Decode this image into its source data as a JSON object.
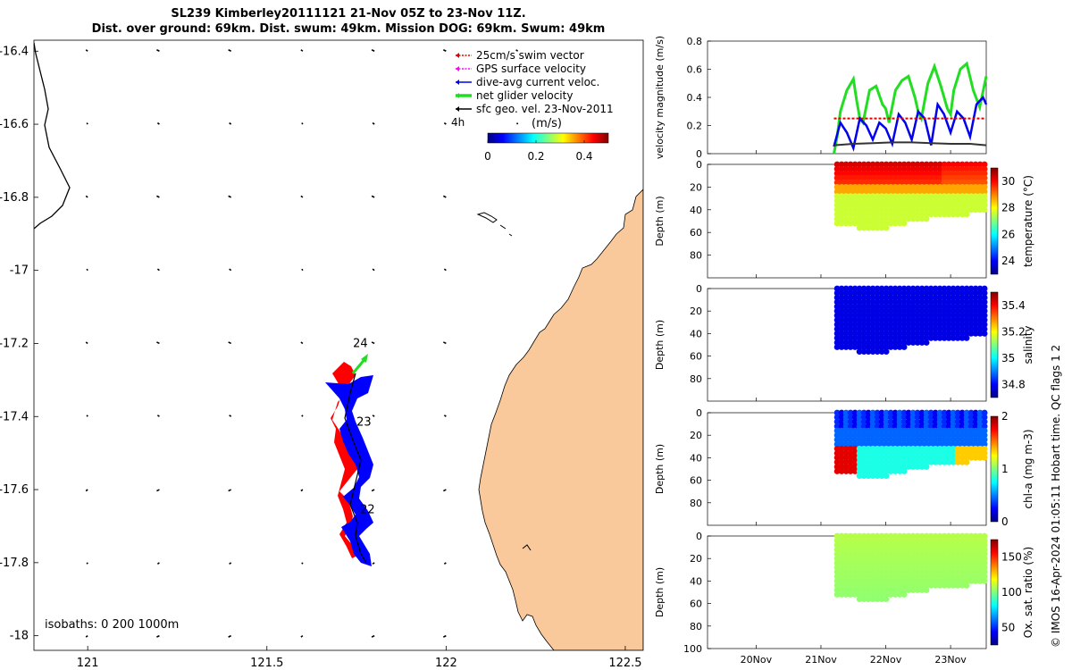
{
  "title_line1": "SL239 Kimberley20111121 21-Nov 05Z to 23-Nov 11Z.",
  "title_line2": "Dist. over ground: 69km. Dist. swum: 49km. Mission DOG: 69km. Swum: 49km",
  "credit": "© IMOS 16-Apr-2024 01:05:11 Hobart time. QC flags 1  2",
  "colors": {
    "land": "#f9c99c",
    "track_red": "#ff0000",
    "track_blue": "#0000ff",
    "net_green": "#22dd22",
    "swim_red": "#dd0000",
    "gps_magenta": "#ff00ff",
    "current_blue": "#0000ee",
    "sfc_black": "#000000"
  },
  "map": {
    "x_ticks": [
      "121",
      "121.5",
      "122",
      "122.5"
    ],
    "y_ticks": [
      "-16.4",
      "-16.6",
      "-16.8",
      "-17",
      "-17.2",
      "-17.4",
      "-17.6",
      "-17.8",
      "-18"
    ],
    "legend": [
      {
        "label": "25cm/s swim vector",
        "color": "#dd0000",
        "style": "dotted"
      },
      {
        "label": "GPS surface velocity",
        "color": "#ff00ff",
        "style": "dotted"
      },
      {
        "label": "dive-avg current veloc.",
        "color": "#0000ee",
        "style": "solid"
      },
      {
        "label": "net glider velocity",
        "color": "#22dd22",
        "style": "thick"
      },
      {
        "label": "sfc geo. vel. 23-Nov-2011",
        "color": "#000000",
        "style": "solid"
      }
    ],
    "time_label": "4h",
    "colorbar": {
      "title": "(m/s)",
      "ticks": [
        "0",
        "0.2",
        "0.4"
      ],
      "range": [
        0,
        0.5
      ]
    },
    "isobaths_label": "isobaths: 0   200  1000m",
    "day_labels": [
      {
        "text": "24",
        "lon": 121.76,
        "lat": -17.2
      },
      {
        "text": "23",
        "lon": 121.77,
        "lat": -17.415
      },
      {
        "text": "22",
        "lon": 121.78,
        "lat": -17.655
      }
    ]
  },
  "chart_data": [
    {
      "type": "line",
      "title": "",
      "xlabel": "",
      "ylabel": "velocity magnitude (m/s)",
      "x_range_days_nov": [
        19.25,
        23.55
      ],
      "ylim": [
        0,
        0.8
      ],
      "y_ticks": [
        "0",
        "0.2",
        "0.4",
        "0.6",
        "0.8"
      ],
      "series": [
        {
          "name": "net glider velocity",
          "color": "#22dd22",
          "x": [
            21.2,
            21.25,
            21.3,
            21.4,
            21.5,
            21.55,
            21.6,
            21.65,
            21.75,
            21.85,
            21.95,
            22.0,
            22.05,
            22.15,
            22.25,
            22.35,
            22.45,
            22.5,
            22.55,
            22.65,
            22.75,
            22.85,
            22.95,
            23.0,
            23.05,
            23.15,
            23.25,
            23.35,
            23.45,
            23.55
          ],
          "values": [
            0.0,
            0.12,
            0.3,
            0.45,
            0.53,
            0.38,
            0.25,
            0.22,
            0.45,
            0.48,
            0.35,
            0.32,
            0.22,
            0.45,
            0.52,
            0.55,
            0.4,
            0.3,
            0.25,
            0.5,
            0.62,
            0.48,
            0.32,
            0.28,
            0.45,
            0.6,
            0.64,
            0.45,
            0.33,
            0.55
          ]
        },
        {
          "name": "dive-avg current veloc.",
          "color": "#0000ee",
          "x": [
            21.2,
            21.3,
            21.4,
            21.5,
            21.6,
            21.7,
            21.8,
            21.9,
            22.0,
            22.1,
            22.2,
            22.3,
            22.4,
            22.5,
            22.6,
            22.7,
            22.8,
            22.9,
            23.0,
            23.1,
            23.2,
            23.3,
            23.4,
            23.5,
            23.55
          ],
          "values": [
            0.05,
            0.22,
            0.15,
            0.04,
            0.25,
            0.2,
            0.1,
            0.22,
            0.18,
            0.07,
            0.28,
            0.22,
            0.1,
            0.3,
            0.25,
            0.06,
            0.35,
            0.28,
            0.15,
            0.3,
            0.25,
            0.12,
            0.35,
            0.4,
            0.35
          ]
        },
        {
          "name": "25cm/s swim vector",
          "color": "#dd0000",
          "x": [
            21.2,
            23.55
          ],
          "values": [
            0.25,
            0.25
          ]
        },
        {
          "name": "sfc geo. vel.",
          "color": "#333333",
          "x": [
            21.2,
            21.5,
            21.8,
            22.1,
            22.4,
            22.7,
            23.0,
            23.3,
            23.55
          ],
          "values": [
            0.06,
            0.07,
            0.075,
            0.08,
            0.08,
            0.075,
            0.07,
            0.07,
            0.06
          ]
        }
      ]
    },
    {
      "type": "scatter",
      "ylabel": "Depth (m)",
      "colorbar_label": "temperature (°C)",
      "y_ticks": [
        "0",
        "20",
        "40",
        "60",
        "80"
      ],
      "c_ticks": [
        "24",
        "26",
        "28",
        "30"
      ],
      "c_range": [
        23,
        31
      ],
      "ylim": [
        0,
        100
      ],
      "x_range_days_nov": [
        19.25,
        23.55
      ]
    },
    {
      "type": "scatter",
      "ylabel": "Depth (m)",
      "colorbar_label": "salinity",
      "y_ticks": [
        "0",
        "20",
        "40",
        "60",
        "80"
      ],
      "c_ticks": [
        "34.8",
        "35",
        "35.2",
        "35.4"
      ],
      "c_range": [
        34.7,
        35.5
      ],
      "ylim": [
        0,
        100
      ],
      "x_range_days_nov": [
        19.25,
        23.55
      ]
    },
    {
      "type": "scatter",
      "ylabel": "Depth (m)",
      "colorbar_label": "chl-a (mg m-3)",
      "y_ticks": [
        "0",
        "20",
        "40",
        "60",
        "80"
      ],
      "c_ticks": [
        "0",
        "1",
        "2"
      ],
      "c_range": [
        0,
        2
      ],
      "ylim": [
        0,
        100
      ],
      "x_range_days_nov": [
        19.25,
        23.55
      ]
    },
    {
      "type": "scatter",
      "ylabel": "Depth (m)",
      "colorbar_label": "Ox. sat. ratio (%)",
      "y_ticks": [
        "0",
        "20",
        "40",
        "60",
        "80",
        "100"
      ],
      "c_ticks": [
        "50",
        "100",
        "150"
      ],
      "c_range": [
        25,
        175
      ],
      "ylim": [
        0,
        100
      ],
      "x_range_days_nov": [
        19.25,
        23.55
      ],
      "x_ticks": [
        "20Nov",
        "21Nov",
        "22Nov",
        "23Nov"
      ]
    }
  ]
}
